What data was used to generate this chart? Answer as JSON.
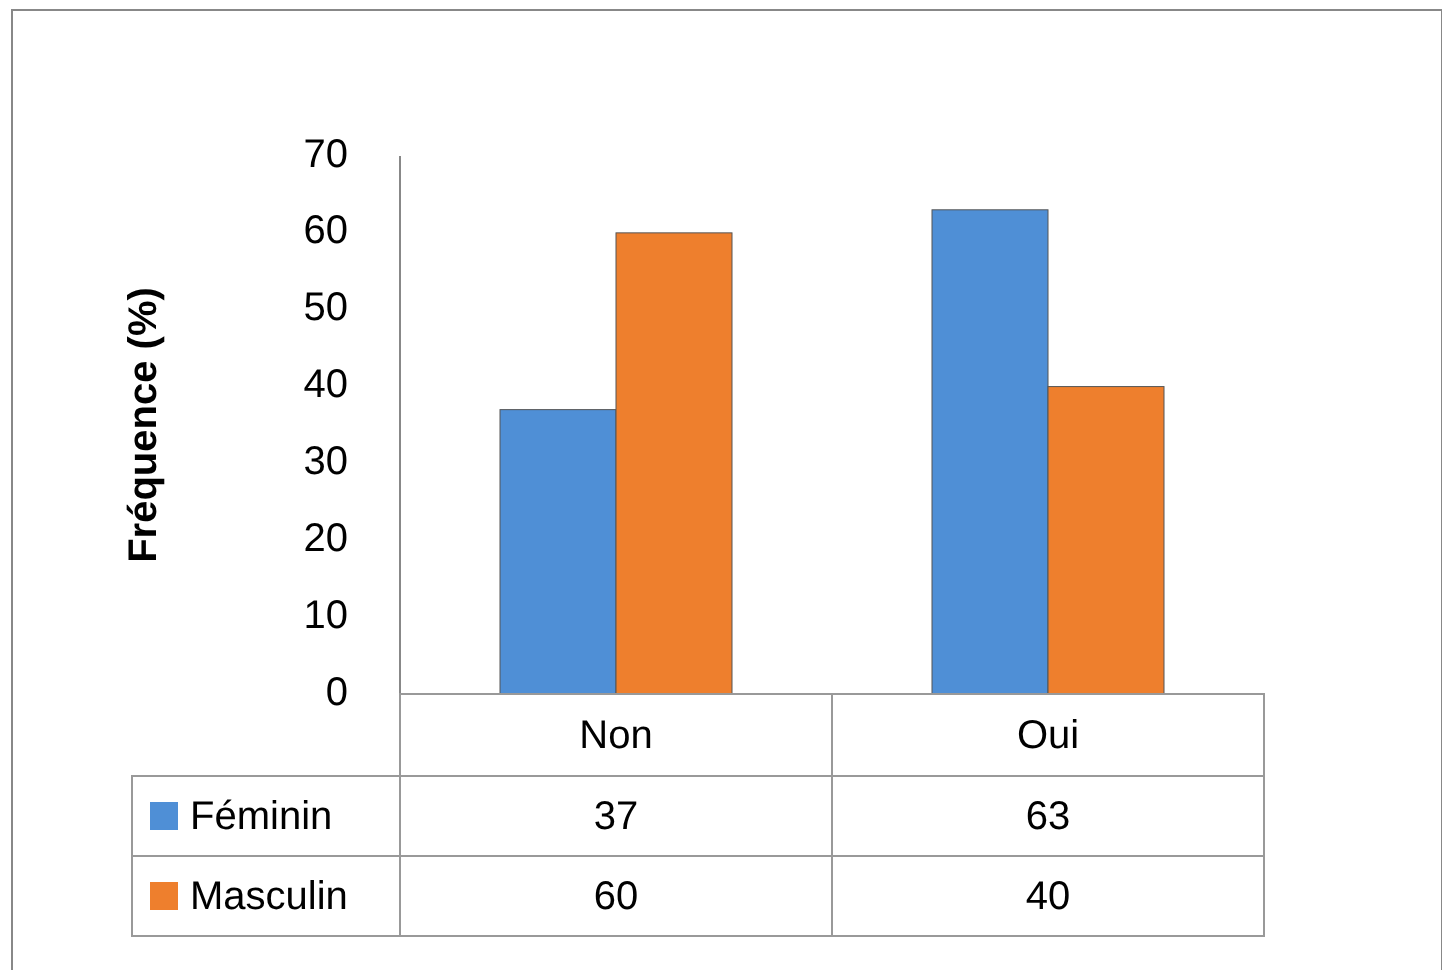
{
  "chart_data": {
    "type": "bar",
    "ylabel": "Fréquence (%)",
    "categories": [
      "Non",
      "Oui"
    ],
    "series": [
      {
        "name": "Féminin",
        "color": "#4f8fd6",
        "values": [
          37,
          63
        ]
      },
      {
        "name": "Masculin",
        "color": "#ee7f2d",
        "values": [
          60,
          40
        ]
      }
    ],
    "ylim": [
      0,
      70
    ],
    "yticks": [
      0,
      10,
      20,
      30,
      40,
      50,
      60,
      70
    ],
    "data_labels": true,
    "legend": "bottom",
    "grid": false
  }
}
